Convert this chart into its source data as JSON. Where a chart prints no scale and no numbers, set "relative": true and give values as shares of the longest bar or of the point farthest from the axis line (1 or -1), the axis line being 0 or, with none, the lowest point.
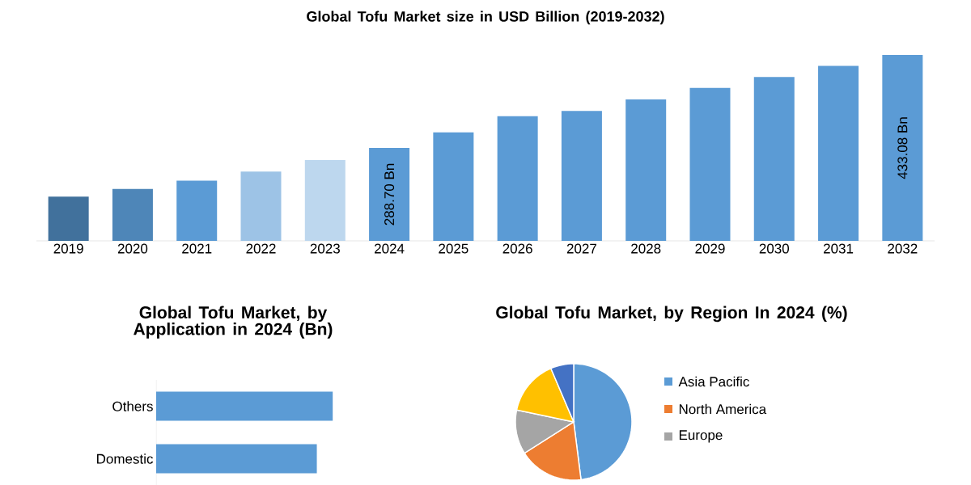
{
  "chart_data": [
    {
      "type": "bar",
      "title": "Global Tofu Market size in USD Billion (2019-2032)",
      "ylim": [
        144.32,
        433.08
      ],
      "tick_labels": "x",
      "categories": [
        "2019",
        "2020",
        "2021",
        "2022",
        "2023",
        "2024",
        "2025",
        "2026",
        "2027",
        "2028",
        "2029",
        "2030",
        "2031",
        "2032"
      ],
      "values": [
        213,
        225,
        238,
        252,
        270,
        288.7,
        313,
        338,
        346,
        364,
        382,
        399,
        416,
        433.08
      ],
      "colors": [
        "#41719c",
        "#4e86b8",
        "#5b9bd5",
        "#9dc3e6",
        "#bdd7ee",
        "#5b9bd5",
        "#5b9bd5",
        "#5b9bd5",
        "#5b9bd5",
        "#5b9bd5",
        "#5b9bd5",
        "#5b9bd5",
        "#5b9bd5",
        "#5b9bd5"
      ],
      "value_labels": [
        null,
        null,
        null,
        null,
        null,
        "288.70 Bn",
        null,
        null,
        null,
        null,
        null,
        null,
        null,
        "433.08 Bn"
      ]
    },
    {
      "type": "bar",
      "orientation": "horizontal",
      "relative": true,
      "title": "Global Tofu Market, by Application in 2024 (Bn)",
      "categories": [
        "Others",
        "Domestic"
      ],
      "values": [
        1,
        0.91
      ],
      "color": "#5b9bd5"
    },
    {
      "type": "pie",
      "title": "Global Tofu Market, by Region In 2024 (%)",
      "legend": "right",
      "categories": [
        "Asia Pacific",
        "North America",
        "Europe",
        null,
        null
      ],
      "values": [
        48,
        18,
        12.3,
        15.3,
        6.4
      ],
      "colors": [
        "#5b9bd5",
        "#ed7d31",
        "#a5a5a5",
        "#ffc000",
        "#4472c4"
      ]
    }
  ]
}
